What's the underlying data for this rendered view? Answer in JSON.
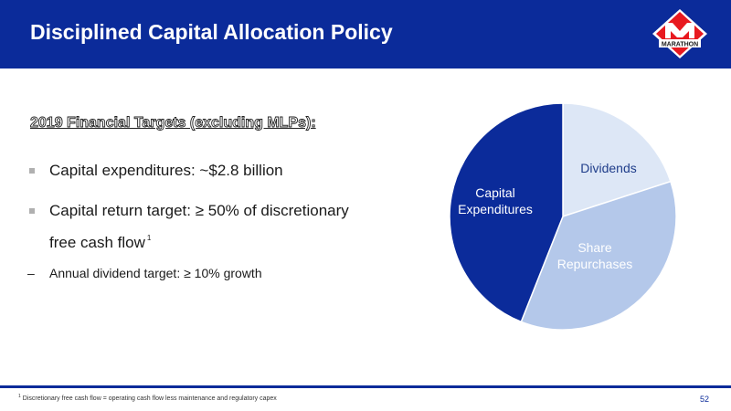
{
  "slide": {
    "title": "Disciplined Capital Allocation Policy",
    "logo_text": "MARATHON",
    "logo_letter": "M",
    "colors": {
      "brand_blue": "#0b2b9a",
      "logo_red": "#e8191f"
    }
  },
  "content": {
    "subtitle": "2019 Financial Targets (excluding MLPs):",
    "bullets": [
      {
        "text": "Capital expenditures: ~$2.8 billion"
      },
      {
        "text_line1": "Capital return target: ≥ 50% of discretionary",
        "text_line2": "free cash flow",
        "footnote_ref": "1"
      }
    ],
    "sub_bullet": {
      "dash": "–",
      "text": "Annual dividend target: ≥ 10% growth"
    }
  },
  "chart_data": {
    "type": "pie",
    "unit": "share of slice (approximate, unlabeled)",
    "slices": [
      {
        "label": "Dividends",
        "value": 0.2,
        "color": "#dde7f6",
        "label_color": "#1f3d8a"
      },
      {
        "label_line1": "Share",
        "label_line2": "Repurchases",
        "value": 0.36,
        "color": "#b4c8ea",
        "label_color": "#ffffff"
      },
      {
        "label_line1": "Capital",
        "label_line2": "Expenditures",
        "value": 0.44,
        "color": "#0b2b9a",
        "label_color": "#ffffff"
      }
    ]
  },
  "footer": {
    "footnote_marker": "1",
    "footnote": "Discretionary free cash flow = operating cash flow less maintenance and regulatory capex",
    "page_number": "52"
  }
}
